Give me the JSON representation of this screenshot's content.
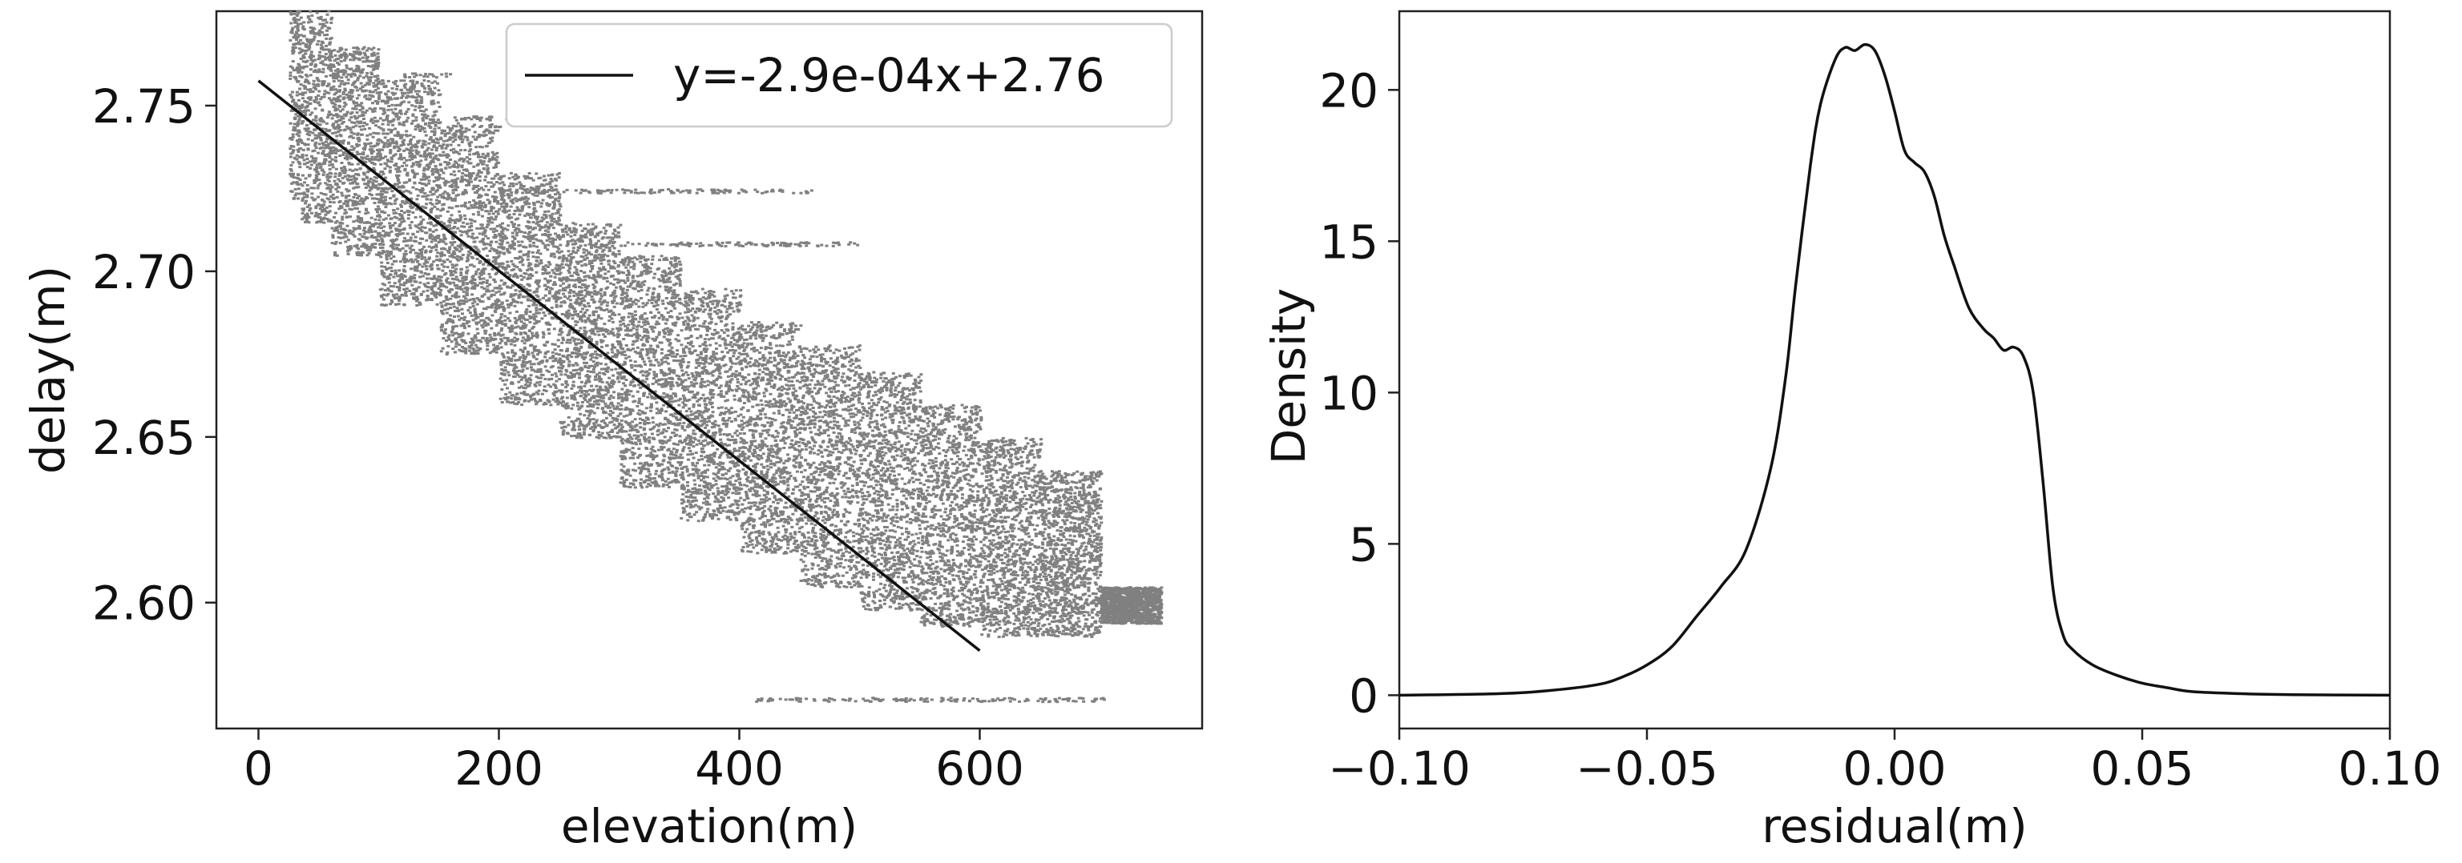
{
  "chart_data": [
    {
      "type": "scatter",
      "xlabel": "elevation(m)",
      "ylabel": "delay(m)",
      "xlim": [
        -35,
        785
      ],
      "ylim": [
        2.562,
        2.7785
      ],
      "xticks": [
        0,
        200,
        400,
        600
      ],
      "xtick_labels": [
        "0",
        "200",
        "400",
        "600"
      ],
      "yticks": [
        2.6,
        2.65,
        2.7,
        2.75
      ],
      "ytick_labels": [
        "2.60",
        "2.65",
        "2.70",
        "2.75"
      ],
      "grid": false,
      "legend": {
        "position": "top-right",
        "entries": [
          "y=-2.9e-04x+2.76"
        ]
      },
      "point_color": "#808080",
      "line_color": "#111111",
      "fit_line": {
        "name": "y=-2.9e-04x+2.76",
        "x": [
          0,
          600
        ],
        "y": [
          2.7575,
          2.5855
        ]
      },
      "scatter_bands": [
        {
          "x": [
            25,
            35
          ],
          "y": [
            2.722,
            2.779
          ]
        },
        {
          "x": [
            35,
            60
          ],
          "y": [
            2.715,
            2.779
          ]
        },
        {
          "x": [
            60,
            100
          ],
          "y": [
            2.705,
            2.768
          ]
        },
        {
          "x": [
            100,
            150
          ],
          "y": [
            2.69,
            2.758
          ]
        },
        {
          "x": [
            150,
            200
          ],
          "y": [
            2.675,
            2.745
          ]
        },
        {
          "x": [
            200,
            250
          ],
          "y": [
            2.66,
            2.73
          ]
        },
        {
          "x": [
            250,
            300
          ],
          "y": [
            2.65,
            2.715
          ]
        },
        {
          "x": [
            300,
            350
          ],
          "y": [
            2.635,
            2.705
          ]
        },
        {
          "x": [
            350,
            400
          ],
          "y": [
            2.625,
            2.695
          ]
        },
        {
          "x": [
            400,
            450
          ],
          "y": [
            2.615,
            2.685
          ]
        },
        {
          "x": [
            450,
            500
          ],
          "y": [
            2.605,
            2.678
          ]
        },
        {
          "x": [
            500,
            550
          ],
          "y": [
            2.598,
            2.67
          ]
        },
        {
          "x": [
            550,
            600
          ],
          "y": [
            2.593,
            2.66
          ]
        },
        {
          "x": [
            600,
            650
          ],
          "y": [
            2.59,
            2.65
          ]
        },
        {
          "x": [
            650,
            700
          ],
          "y": [
            2.59,
            2.64
          ]
        },
        {
          "x": [
            700,
            750
          ],
          "y": [
            2.594,
            2.605
          ]
        }
      ],
      "scatter_outliers": [
        {
          "x": [
            410,
            710
          ],
          "y": 2.571
        },
        {
          "x": [
            120,
            160
          ],
          "y": 2.7595
        },
        {
          "x": [
            160,
            240
          ],
          "y": 2.7465
        },
        {
          "x": [
            200,
            460
          ],
          "y": 2.7245
        },
        {
          "x": [
            280,
            500
          ],
          "y": 2.7085
        }
      ]
    },
    {
      "type": "line",
      "xlabel": "residual(m)",
      "ylabel": "Density",
      "xlim": [
        -0.1,
        0.1
      ],
      "ylim": [
        -1.1,
        22.6
      ],
      "xticks": [
        -0.1,
        -0.05,
        0.0,
        0.05,
        0.1
      ],
      "xtick_labels": [
        "−0.10",
        "−0.05",
        "0.00",
        "0.05",
        "0.10"
      ],
      "yticks": [
        0,
        5,
        10,
        15,
        20
      ],
      "ytick_labels": [
        "0",
        "5",
        "10",
        "15",
        "20"
      ],
      "grid": false,
      "line_color": "#111111",
      "x": [
        -0.1,
        -0.08,
        -0.07,
        -0.06,
        -0.055,
        -0.05,
        -0.045,
        -0.04,
        -0.035,
        -0.03,
        -0.025,
        -0.022,
        -0.02,
        -0.017,
        -0.015,
        -0.012,
        -0.01,
        -0.008,
        -0.006,
        -0.004,
        -0.002,
        0.0,
        0.002,
        0.004,
        0.006,
        0.008,
        0.01,
        0.012,
        0.015,
        0.018,
        0.02,
        0.022,
        0.024,
        0.026,
        0.028,
        0.03,
        0.032,
        0.034,
        0.036,
        0.04,
        0.045,
        0.05,
        0.055,
        0.06,
        0.07,
        0.08,
        0.1
      ],
      "y": [
        0.0,
        0.05,
        0.15,
        0.35,
        0.6,
        1.0,
        1.6,
        2.6,
        3.6,
        4.8,
        7.5,
        10.5,
        13.5,
        17.5,
        19.5,
        21.0,
        21.4,
        21.3,
        21.5,
        21.3,
        20.5,
        19.3,
        18.0,
        17.6,
        17.3,
        16.5,
        15.2,
        14.2,
        12.8,
        12.1,
        11.8,
        11.4,
        11.5,
        11.2,
        10.0,
        7.0,
        3.5,
        2.0,
        1.5,
        1.0,
        0.65,
        0.4,
        0.25,
        0.12,
        0.05,
        0.02,
        0.0
      ]
    }
  ]
}
